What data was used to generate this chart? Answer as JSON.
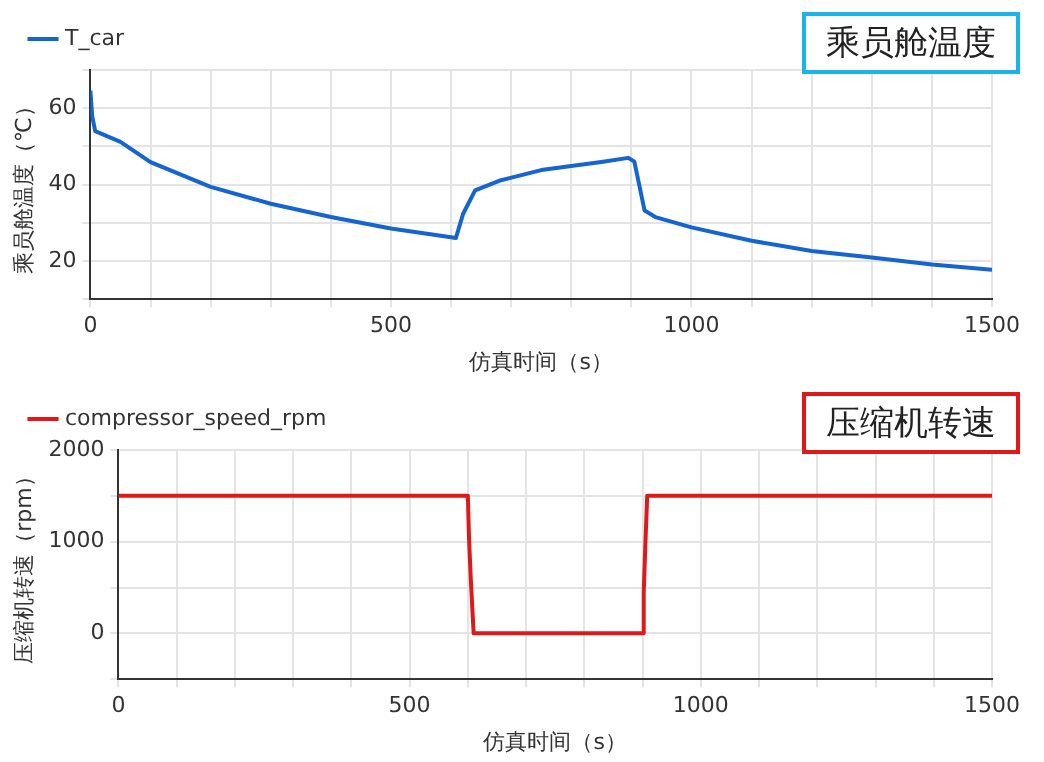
{
  "chart_data": [
    {
      "type": "line",
      "title": "乘员舱温度",
      "xlabel": "仿真时间（s）",
      "ylabel": "乘员舱温度（℃）",
      "legend": "top left",
      "grid": true,
      "marker": "none",
      "line_style": "solid",
      "xlim": [
        0,
        1500
      ],
      "xticks": [
        0,
        {
          "value": 100,
          "label": null
        },
        {
          "value": 200,
          "label": null
        },
        {
          "value": 300,
          "label": null
        },
        {
          "value": 400,
          "label": null
        },
        500,
        {
          "value": 600,
          "label": null
        },
        {
          "value": 700,
          "label": null
        },
        {
          "value": 800,
          "label": null
        },
        {
          "value": 900,
          "label": null
        },
        1000,
        {
          "value": 1100,
          "label": null
        },
        {
          "value": 1200,
          "label": null
        },
        {
          "value": 1300,
          "label": null
        },
        {
          "value": 1400,
          "label": null
        },
        1500
      ],
      "ylim": [
        10,
        70
      ],
      "yticks": [
        {
          "value": 10,
          "label": null
        },
        20,
        {
          "value": 30,
          "label": null
        },
        40,
        {
          "value": 50,
          "label": null
        },
        60,
        {
          "value": 70,
          "label": null
        }
      ],
      "series": [
        {
          "name": "T_car",
          "color": "#1464d2",
          "x": [
            0,
            3,
            8,
            50,
            100,
            200,
            300,
            400,
            500,
            600,
            608,
            620,
            640,
            680,
            750,
            850,
            895,
            905,
            922,
            940,
            1000,
            1100,
            1200,
            1300,
            1400,
            1500
          ],
          "values": [
            64.6,
            57.9,
            54,
            51.2,
            45.9,
            39.4,
            35,
            31.5,
            28.5,
            26.2,
            26,
            32.3,
            38.5,
            41,
            43.8,
            45.9,
            47,
            46,
            33.2,
            31.5,
            28.8,
            25.3,
            22.6,
            20.9,
            19.1,
            17.7
          ]
        }
      ]
    },
    {
      "type": "line",
      "title": "压缩机转速",
      "xlabel": "仿真时间（s）",
      "ylabel": "压缩机转速（rpm）",
      "legend": "top left",
      "grid": true,
      "marker": "none",
      "line_style": "solid",
      "xlim": [
        0,
        1500
      ],
      "xticks": [
        0,
        {
          "value": 100,
          "label": null
        },
        {
          "value": 200,
          "label": null
        },
        {
          "value": 300,
          "label": null
        },
        {
          "value": 400,
          "label": null
        },
        500,
        {
          "value": 600,
          "label": null
        },
        {
          "value": 700,
          "label": null
        },
        {
          "value": 800,
          "label": null
        },
        {
          "value": 900,
          "label": null
        },
        1000,
        {
          "value": 1100,
          "label": null
        },
        {
          "value": 1200,
          "label": null
        },
        {
          "value": 1300,
          "label": null
        },
        {
          "value": 1400,
          "label": null
        },
        1500
      ],
      "ylim": [
        -500,
        2000
      ],
      "yticks": [
        {
          "value": -500,
          "label": null
        },
        0,
        {
          "value": 500,
          "label": null
        },
        1000,
        {
          "value": 1500,
          "label": null
        },
        2000
      ],
      "series": [
        {
          "name": "compressor_speed_rpm",
          "color": "#e01818",
          "x": [
            0,
            600,
            602,
            605,
            610,
            900,
            902,
            905,
            908,
            1500
          ],
          "values": [
            1500,
            1500,
            1050,
            600,
            0,
            0,
            450,
            1000,
            1500,
            1500
          ]
        }
      ]
    }
  ]
}
